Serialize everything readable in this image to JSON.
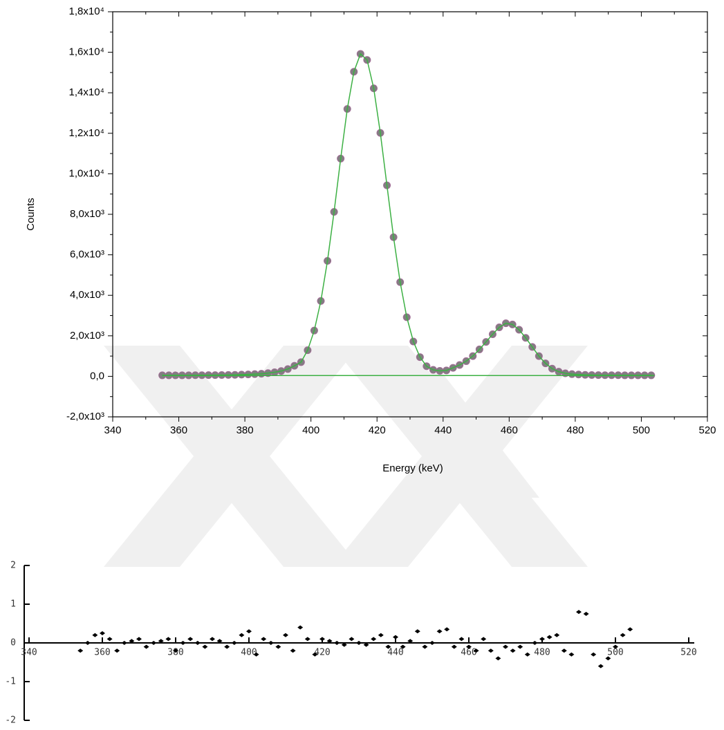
{
  "chart_data": [
    {
      "type": "scatter",
      "xlabel": "Energy (keV)",
      "ylabel": "Counts",
      "x": [
        355,
        357,
        359,
        361,
        363,
        365,
        367,
        369,
        371,
        373,
        375,
        377,
        379,
        381,
        383,
        385,
        387,
        389,
        391,
        393,
        395,
        397,
        399,
        401,
        403,
        405,
        407,
        409,
        411,
        413,
        415,
        417,
        419,
        421,
        423,
        425,
        427,
        429,
        431,
        433,
        435,
        437,
        439,
        441,
        443,
        445,
        447,
        449,
        451,
        453,
        455,
        457,
        459,
        461,
        463,
        465,
        467,
        469,
        471,
        473,
        475,
        477,
        479,
        481,
        483,
        485,
        487,
        489,
        491,
        493,
        495,
        497,
        499,
        501,
        503
      ],
      "series": [
        {
          "mode": "markers",
          "color": "#808080",
          "values": [
            50,
            50,
            50,
            50,
            50,
            55,
            55,
            60,
            60,
            65,
            70,
            75,
            85,
            95,
            110,
            130,
            160,
            200,
            260,
            360,
            520,
            700,
            1290,
            2260,
            3720,
            5700,
            8120,
            10750,
            13200,
            15040,
            15920,
            15620,
            14220,
            12020,
            9430,
            6870,
            4650,
            2920,
            1720,
            950,
            500,
            320,
            270,
            290,
            420,
            560,
            750,
            1000,
            1330,
            1700,
            2080,
            2420,
            2620,
            2560,
            2300,
            1900,
            1450,
            1000,
            640,
            380,
            230,
            150,
            110,
            90,
            75,
            65,
            60,
            55,
            55,
            55,
            50,
            50,
            50,
            50,
            50
          ]
        },
        {
          "mode": "line",
          "color": "#3cb043",
          "values": [
            50,
            50,
            50,
            50,
            50,
            55,
            55,
            60,
            60,
            65,
            70,
            75,
            85,
            95,
            110,
            130,
            160,
            200,
            260,
            360,
            520,
            700,
            1290,
            2260,
            3720,
            5700,
            8120,
            10750,
            13200,
            15040,
            15920,
            15620,
            14220,
            12020,
            9430,
            6870,
            4650,
            2920,
            1720,
            950,
            500,
            320,
            270,
            290,
            420,
            560,
            750,
            1000,
            1330,
            1700,
            2080,
            2420,
            2620,
            2560,
            2300,
            1900,
            1450,
            1000,
            640,
            380,
            230,
            150,
            110,
            90,
            75,
            65,
            60,
            55,
            55,
            55,
            50,
            50,
            50,
            50,
            50
          ]
        },
        {
          "mode": "line",
          "color": "#3cb043",
          "x": [
            355,
            504
          ],
          "values": [
            40,
            40
          ]
        }
      ],
      "xlim": [
        340,
        520
      ],
      "xticks": [
        340,
        360,
        380,
        400,
        420,
        440,
        460,
        480,
        500,
        520
      ],
      "ylim": [
        -2000,
        18000
      ],
      "yticks": [
        {
          "value": -2000,
          "label": "-2,0x10³"
        },
        {
          "value": 0,
          "label": "0,0"
        },
        {
          "value": 2000,
          "label": "2,0x10³"
        },
        {
          "value": 4000,
          "label": "4,0x10³"
        },
        {
          "value": 6000,
          "label": "6,0x10³"
        },
        {
          "value": 8000,
          "label": "8,0x10³"
        },
        {
          "value": 10000,
          "label": "1,0x10⁴"
        },
        {
          "value": 12000,
          "label": "1,2x10⁴"
        },
        {
          "value": 14000,
          "label": "1,4x10⁴"
        },
        {
          "value": 16000,
          "label": "1,6x10⁴"
        },
        {
          "value": 18000,
          "label": "1,8x10⁴"
        }
      ]
    },
    {
      "type": "scatter",
      "x": [
        354,
        356,
        358,
        360,
        362,
        364,
        366,
        368,
        370,
        372,
        374,
        376,
        378,
        380,
        382,
        384,
        386,
        388,
        390,
        392,
        394,
        396,
        398,
        400,
        402,
        404,
        406,
        408,
        410,
        412,
        414,
        416,
        418,
        420,
        422,
        424,
        426,
        428,
        430,
        432,
        434,
        436,
        438,
        440,
        442,
        444,
        446,
        448,
        450,
        452,
        454,
        456,
        458,
        460,
        462,
        464,
        466,
        468,
        470,
        472,
        474,
        476,
        478,
        480,
        482,
        484,
        486,
        488,
        490,
        492,
        494,
        496,
        498,
        500,
        502,
        504
      ],
      "series": [
        {
          "mode": "markers",
          "color": "#000000",
          "values": [
            -0.2,
            0,
            0.2,
            0.25,
            0.1,
            -0.2,
            0,
            0.05,
            0.1,
            -0.1,
            0,
            0.05,
            0.1,
            -0.2,
            0,
            0.1,
            0,
            -0.1,
            0.1,
            0.05,
            -0.1,
            0,
            0.2,
            0.3,
            -0.3,
            0.1,
            0,
            -0.1,
            0.2,
            -0.2,
            0.4,
            0.1,
            -0.3,
            0.1,
            0.05,
            0,
            -0.05,
            0.1,
            0,
            -0.05,
            0.1,
            0.2,
            -0.1,
            0.15,
            -0.1,
            0.05,
            0.3,
            -0.1,
            0,
            0.3,
            0.35,
            -0.1,
            0.1,
            -0.1,
            -0.2,
            0.1,
            -0.2,
            -0.4,
            -0.1,
            -0.2,
            -0.1,
            -0.3,
            0,
            0.1,
            0.15,
            0.2,
            -0.2,
            -0.3,
            0.8,
            0.75,
            -0.3,
            -0.6,
            -0.4,
            -0.1,
            0.2,
            0.35
          ]
        }
      ],
      "xlim": [
        340,
        520
      ],
      "xticks": [
        340,
        360,
        380,
        400,
        420,
        440,
        460,
        480,
        500,
        520
      ],
      "ylim": [
        -2,
        2
      ],
      "yticks": [
        -2,
        -1,
        0,
        1,
        2
      ]
    }
  ]
}
